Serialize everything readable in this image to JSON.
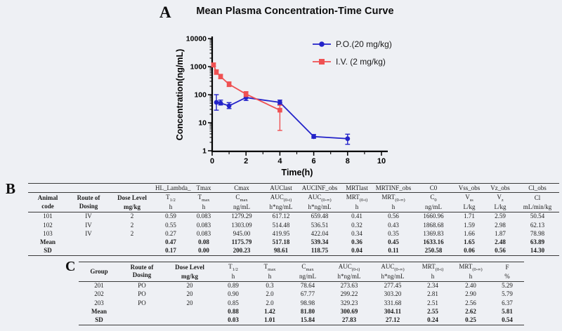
{
  "colors": {
    "background": "#eef0f4",
    "po_blue": "#2323c9",
    "iv_red": "#ef5152",
    "text": "#0d0d0d",
    "table_rule": "#3a3a3a"
  },
  "chart_data": [
    {
      "type": "line",
      "panel_label": "A",
      "title": "Mean Plasma Concentration-Time Curve",
      "xlabel": "Time(h)",
      "ylabel": "Concentration(ng/mL)",
      "x_ticks": [
        0,
        2,
        4,
        6,
        8,
        10
      ],
      "x_minor_ticks": [
        1,
        3,
        5,
        7,
        9
      ],
      "xlim": [
        0,
        10
      ],
      "y_scale": "log",
      "y_ticks": [
        1,
        10,
        100,
        1000,
        10000
      ],
      "ylim": [
        1,
        10000
      ],
      "grid": false,
      "legend_position": "top-right",
      "series": [
        {
          "name": "P.O.(20 mg/kg)",
          "color": "#2323c9",
          "marker": "circle",
          "x": [
            0.25,
            0.5,
            1,
            2,
            4,
            6,
            8
          ],
          "y": [
            53,
            50,
            40,
            79,
            53,
            3.2,
            2.7
          ],
          "y_err_low": [
            28,
            43,
            32,
            62,
            45,
            2.8,
            1.7
          ],
          "y_err_high": [
            100,
            64,
            52,
            100,
            64,
            3.8,
            3.9
          ]
        },
        {
          "name": "I.V. (2 mg/kg)",
          "color": "#ef5152",
          "marker": "square",
          "x": [
            0.083,
            0.25,
            0.5,
            1,
            2,
            4
          ],
          "y": [
            1150,
            640,
            440,
            235,
            105,
            28
          ],
          "y_err_low": [
            980,
            530,
            370,
            195,
            86,
            5.3
          ],
          "y_err_high": [
            1350,
            770,
            530,
            285,
            128,
            42
          ]
        }
      ]
    },
    {
      "type": "table",
      "panel_label": "B",
      "header": {
        "codes": [
          "",
          "",
          "",
          "HL_Lambda_",
          "Tmax",
          "Cmax",
          "AUClast",
          "AUCINF_obs",
          "MRTlast",
          "MRTINF_obs",
          "C0",
          "Vss_obs",
          "Vz_obs",
          "Cl_obs"
        ],
        "row_label": "Animal\ncode",
        "route": "Route of\nDosing",
        "dose": "Dose Level",
        "dose_unit": "mg/kg",
        "symbols": [
          "T_{1/2}",
          "T_{max}",
          "C_{max}",
          "AUC_{(0-t)}",
          "AUC_{(0-∞)}",
          "MRT_{(0-t)}",
          "MRT_{(0-∞)}",
          "C_{0}",
          "V_{ss}",
          "V_{z}",
          "Cl"
        ],
        "units": [
          "h",
          "h",
          "ng/mL",
          "h*ng/mL",
          "h*ng/mL",
          "h",
          "h",
          "ng/mL",
          "L/kg",
          "L/kg",
          "mL/min/kg"
        ]
      },
      "rows": [
        [
          "101",
          "IV",
          "2",
          "0.59",
          "0.083",
          "1279.29",
          "617.12",
          "659.48",
          "0.41",
          "0.56",
          "1660.96",
          "1.71",
          "2.59",
          "50.54"
        ],
        [
          "102",
          "IV",
          "2",
          "0.55",
          "0.083",
          "1303.09",
          "514.48",
          "536.51",
          "0.32",
          "0.43",
          "1868.68",
          "1.59",
          "2.98",
          "62.13"
        ],
        [
          "103",
          "IV",
          "2",
          "0.27",
          "0.083",
          "945.00",
          "419.95",
          "422.04",
          "0.34",
          "0.35",
          "1369.83",
          "1.66",
          "1.87",
          "78.98"
        ],
        [
          "Mean",
          "",
          "",
          "0.47",
          "0.08",
          "1175.79",
          "517.18",
          "539.34",
          "0.36",
          "0.45",
          "1633.16",
          "1.65",
          "2.48",
          "63.89"
        ],
        [
          "SD",
          "",
          "",
          "0.17",
          "0.00",
          "200.23",
          "98.61",
          "118.75",
          "0.04",
          "0.11",
          "250.58",
          "0.06",
          "0.56",
          "14.30"
        ]
      ],
      "bold_rows": [
        3,
        4
      ]
    },
    {
      "type": "table",
      "panel_label": "C",
      "header": {
        "row_label": "Group",
        "route": "Route of\nDosing",
        "dose": "Dose Level",
        "dose_unit": "mg/kg",
        "symbols": [
          "T_{1/2}",
          "T_{max}",
          "C_{max}",
          "AUC_{(0-t)}",
          "AUC_{(0-∞)}",
          "MRT_{(0-t)}",
          "MRT_{(0-∞)}",
          "F"
        ],
        "units": [
          "h",
          "h",
          "ng/mL",
          "h*ng/mL",
          "h*ng/mL",
          "h",
          "h",
          "%"
        ]
      },
      "rows": [
        [
          "201",
          "PO",
          "20",
          "0.89",
          "0.3",
          "78.64",
          "273.63",
          "277.45",
          "2.34",
          "2.40",
          "5.29"
        ],
        [
          "202",
          "PO",
          "20",
          "0.90",
          "2.0",
          "67.77",
          "299.22",
          "303.20",
          "2.81",
          "2.90",
          "5.79"
        ],
        [
          "203",
          "PO",
          "20",
          "0.85",
          "2.0",
          "98.98",
          "329.23",
          "331.68",
          "2.51",
          "2.56",
          "6.37"
        ],
        [
          "Mean",
          "",
          "",
          "0.88",
          "1.42",
          "81.80",
          "300.69",
          "304.11",
          "2.55",
          "2.62",
          "5.81"
        ],
        [
          "SD",
          "",
          "",
          "0.03",
          "1.01",
          "15.84",
          "27.83",
          "27.12",
          "0.24",
          "0.25",
          "0.54"
        ]
      ],
      "bold_rows": [
        3,
        4
      ]
    }
  ]
}
